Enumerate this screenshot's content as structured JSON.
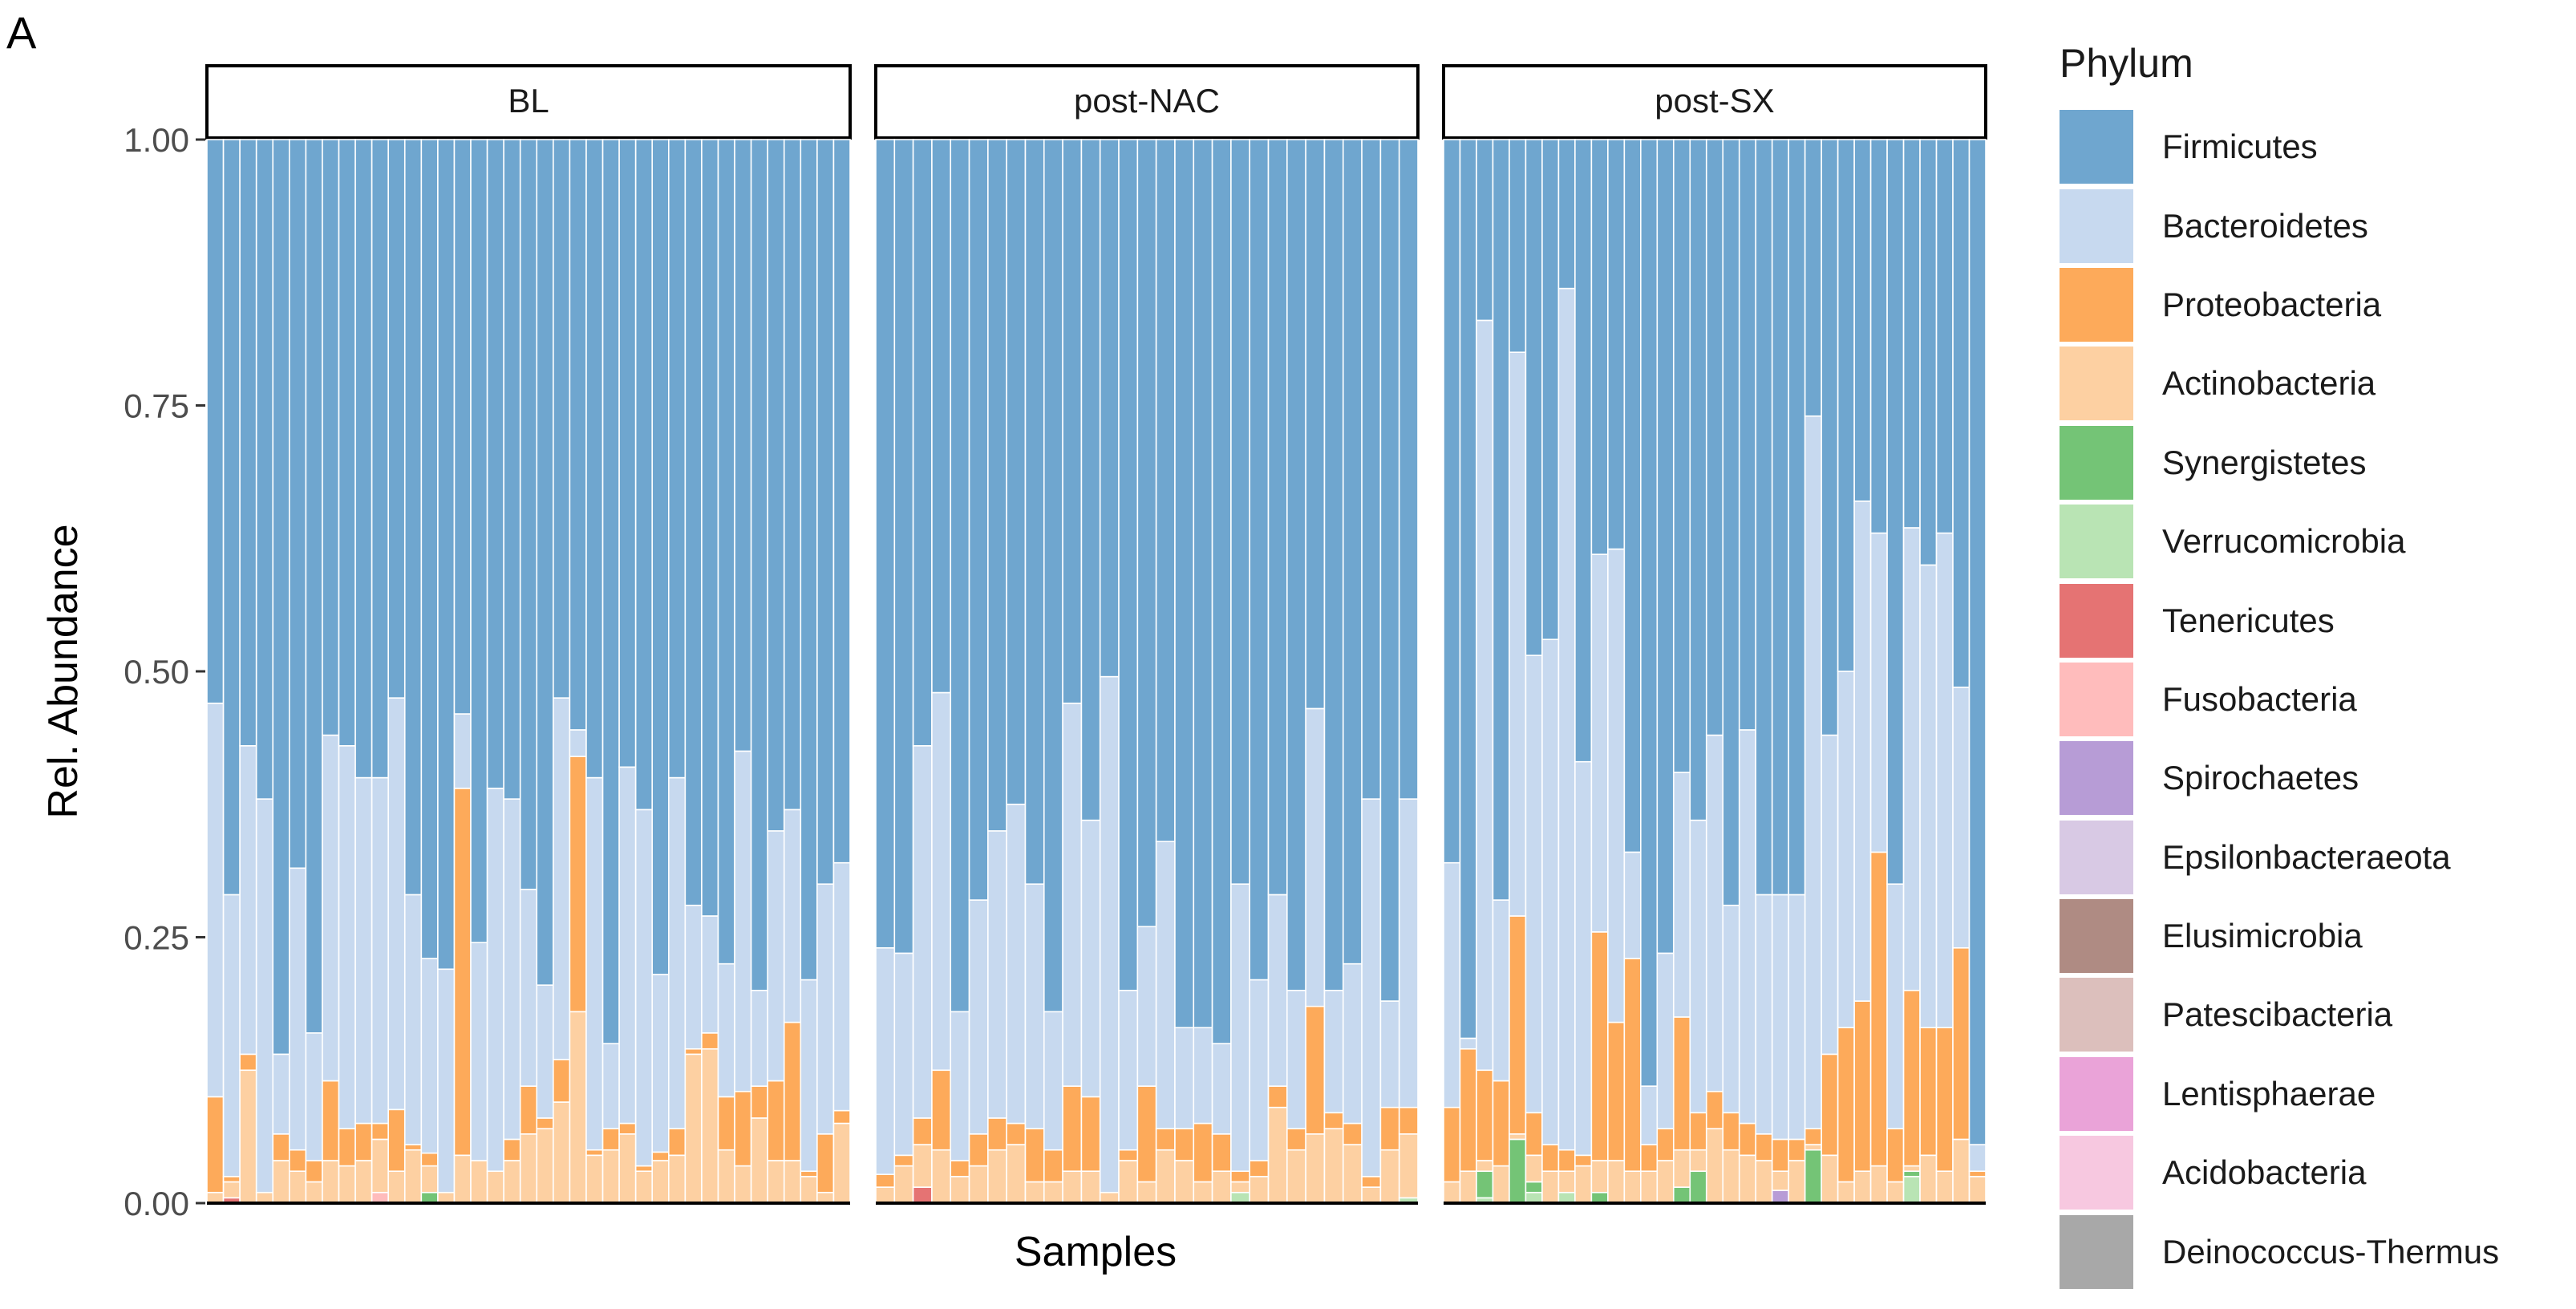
{
  "panel_letter": "A",
  "chart_data": {
    "type": "bar",
    "stacked": true,
    "normalized": true,
    "xlabel": "Samples",
    "ylabel": "Rel. Abundance",
    "ylim": [
      0,
      1
    ],
    "yticks": [
      "0.00",
      "0.25",
      "0.50",
      "0.75",
      "1.00"
    ],
    "legend_title": "Phylum",
    "legend_position": "right",
    "phyla": [
      {
        "name": "Firmicutes",
        "color": "#6fa6cf"
      },
      {
        "name": "Bacteroidetes",
        "color": "#c7d9ef"
      },
      {
        "name": "Proteobacteria",
        "color": "#fdaa5a"
      },
      {
        "name": "Actinobacteria",
        "color": "#fdd0a2"
      },
      {
        "name": "Synergistetes",
        "color": "#74c476"
      },
      {
        "name": "Verrucomicrobia",
        "color": "#b9e4b4"
      },
      {
        "name": "Tenericutes",
        "color": "#e57373"
      },
      {
        "name": "Fusobacteria",
        "color": "#ffbcbc"
      },
      {
        "name": "Spirochaetes",
        "color": "#b79cd6"
      },
      {
        "name": "Epsilonbacteraeota",
        "color": "#d8c9e4"
      },
      {
        "name": "Elusimicrobia",
        "color": "#af8b83"
      },
      {
        "name": "Patescibacteria",
        "color": "#dcbfbc"
      },
      {
        "name": "Lentisphaerae",
        "color": "#eaa3d8"
      },
      {
        "name": "Acidobacteria",
        "color": "#f7c8e0"
      },
      {
        "name": "Deinococcus-Thermus",
        "color": "#a8a8a8"
      }
    ],
    "facets": [
      {
        "label": "BL",
        "samples": [
          {
            "Actinobacteria": 0.01,
            "Proteobacteria": 0.09,
            "Bacteroidetes": 0.37
          },
          {
            "Tenericutes": 0.005,
            "Actinobacteria": 0.015,
            "Proteobacteria": 0.005,
            "Bacteroidetes": 0.265
          },
          {
            "Actinobacteria": 0.125,
            "Proteobacteria": 0.015,
            "Bacteroidetes": 0.29
          },
          {
            "Actinobacteria": 0.01,
            "Bacteroidetes": 0.37
          },
          {
            "Actinobacteria": 0.04,
            "Proteobacteria": 0.025,
            "Bacteroidetes": 0.075
          },
          {
            "Actinobacteria": 0.03,
            "Proteobacteria": 0.02,
            "Bacteroidetes": 0.265
          },
          {
            "Actinobacteria": 0.02,
            "Proteobacteria": 0.02,
            "Bacteroidetes": 0.12
          },
          {
            "Actinobacteria": 0.04,
            "Proteobacteria": 0.075,
            "Bacteroidetes": 0.325
          },
          {
            "Actinobacteria": 0.035,
            "Proteobacteria": 0.035,
            "Bacteroidetes": 0.36
          },
          {
            "Actinobacteria": 0.04,
            "Proteobacteria": 0.035,
            "Bacteroidetes": 0.325
          },
          {
            "Fusobacteria": 0.01,
            "Actinobacteria": 0.05,
            "Proteobacteria": 0.015,
            "Bacteroidetes": 0.325
          },
          {
            "Actinobacteria": 0.03,
            "Proteobacteria": 0.058,
            "Bacteroidetes": 0.387
          },
          {
            "Actinobacteria": 0.05,
            "Proteobacteria": 0.005,
            "Bacteroidetes": 0.235
          },
          {
            "Synergistetes": 0.01,
            "Actinobacteria": 0.025,
            "Proteobacteria": 0.012,
            "Bacteroidetes": 0.183
          },
          {
            "Actinobacteria": 0.01,
            "Bacteroidetes": 0.21
          },
          {
            "Actinobacteria": 0.045,
            "Proteobacteria": 0.345,
            "Bacteroidetes": 0.07
          },
          {
            "Actinobacteria": 0.04,
            "Bacteroidetes": 0.205
          },
          {
            "Actinobacteria": 0.03,
            "Bacteroidetes": 0.36
          },
          {
            "Actinobacteria": 0.04,
            "Proteobacteria": 0.02,
            "Bacteroidetes": 0.32
          },
          {
            "Actinobacteria": 0.065,
            "Proteobacteria": 0.045,
            "Bacteroidetes": 0.185
          },
          {
            "Actinobacteria": 0.07,
            "Proteobacteria": 0.01,
            "Bacteroidetes": 0.125
          },
          {
            "Actinobacteria": 0.095,
            "Proteobacteria": 0.04,
            "Bacteroidetes": 0.34
          },
          {
            "Actinobacteria": 0.18,
            "Proteobacteria": 0.24,
            "Bacteroidetes": 0.025
          },
          {
            "Actinobacteria": 0.045,
            "Proteobacteria": 0.005,
            "Bacteroidetes": 0.35
          },
          {
            "Actinobacteria": 0.05,
            "Proteobacteria": 0.02,
            "Bacteroidetes": 0.08
          },
          {
            "Actinobacteria": 0.065,
            "Proteobacteria": 0.01,
            "Bacteroidetes": 0.335
          },
          {
            "Actinobacteria": 0.03,
            "Proteobacteria": 0.005,
            "Bacteroidetes": 0.335
          },
          {
            "Actinobacteria": 0.04,
            "Proteobacteria": 0.008,
            "Bacteroidetes": 0.167
          },
          {
            "Actinobacteria": 0.045,
            "Proteobacteria": 0.025,
            "Bacteroidetes": 0.33
          },
          {
            "Actinobacteria": 0.14,
            "Proteobacteria": 0.005,
            "Bacteroidetes": 0.135
          },
          {
            "Actinobacteria": 0.145,
            "Proteobacteria": 0.015,
            "Bacteroidetes": 0.11
          },
          {
            "Actinobacteria": 0.05,
            "Proteobacteria": 0.05,
            "Bacteroidetes": 0.125
          },
          {
            "Actinobacteria": 0.035,
            "Proteobacteria": 0.07,
            "Bacteroidetes": 0.32
          },
          {
            "Actinobacteria": 0.08,
            "Proteobacteria": 0.03,
            "Bacteroidetes": 0.09
          },
          {
            "Actinobacteria": 0.04,
            "Proteobacteria": 0.075,
            "Bacteroidetes": 0.235
          },
          {
            "Actinobacteria": 0.04,
            "Proteobacteria": 0.13,
            "Bacteroidetes": 0.2
          },
          {
            "Actinobacteria": 0.025,
            "Proteobacteria": 0.005,
            "Bacteroidetes": 0.18
          },
          {
            "Actinobacteria": 0.01,
            "Proteobacteria": 0.055,
            "Bacteroidetes": 0.235
          },
          {
            "Actinobacteria": 0.075,
            "Proteobacteria": 0.012,
            "Bacteroidetes": 0.233
          }
        ]
      },
      {
        "label": "post-NAC",
        "samples": [
          {
            "Actinobacteria": 0.015,
            "Proteobacteria": 0.012,
            "Bacteroidetes": 0.213
          },
          {
            "Actinobacteria": 0.035,
            "Proteobacteria": 0.01,
            "Bacteroidetes": 0.19
          },
          {
            "Tenericutes": 0.015,
            "Actinobacteria": 0.04,
            "Proteobacteria": 0.025,
            "Bacteroidetes": 0.35
          },
          {
            "Actinobacteria": 0.05,
            "Proteobacteria": 0.075,
            "Bacteroidetes": 0.355
          },
          {
            "Actinobacteria": 0.025,
            "Proteobacteria": 0.015,
            "Bacteroidetes": 0.14
          },
          {
            "Actinobacteria": 0.035,
            "Proteobacteria": 0.03,
            "Bacteroidetes": 0.22
          },
          {
            "Actinobacteria": 0.05,
            "Proteobacteria": 0.03,
            "Bacteroidetes": 0.27
          },
          {
            "Actinobacteria": 0.055,
            "Proteobacteria": 0.02,
            "Bacteroidetes": 0.3
          },
          {
            "Actinobacteria": 0.02,
            "Proteobacteria": 0.05,
            "Bacteroidetes": 0.23
          },
          {
            "Actinobacteria": 0.02,
            "Proteobacteria": 0.03,
            "Bacteroidetes": 0.13
          },
          {
            "Actinobacteria": 0.03,
            "Proteobacteria": 0.08,
            "Bacteroidetes": 0.36
          },
          {
            "Actinobacteria": 0.03,
            "Proteobacteria": 0.07,
            "Bacteroidetes": 0.26
          },
          {
            "Actinobacteria": 0.01,
            "Bacteroidetes": 0.485
          },
          {
            "Actinobacteria": 0.04,
            "Proteobacteria": 0.01,
            "Bacteroidetes": 0.15
          },
          {
            "Actinobacteria": 0.02,
            "Proteobacteria": 0.09,
            "Bacteroidetes": 0.15
          },
          {
            "Actinobacteria": 0.05,
            "Proteobacteria": 0.02,
            "Bacteroidetes": 0.27
          },
          {
            "Actinobacteria": 0.04,
            "Proteobacteria": 0.03,
            "Bacteroidetes": 0.095
          },
          {
            "Actinobacteria": 0.02,
            "Proteobacteria": 0.055,
            "Bacteroidetes": 0.09
          },
          {
            "Actinobacteria": 0.03,
            "Proteobacteria": 0.035,
            "Bacteroidetes": 0.085
          },
          {
            "Verrucomicrobia": 0.01,
            "Actinobacteria": 0.01,
            "Proteobacteria": 0.01,
            "Bacteroidetes": 0.27
          },
          {
            "Actinobacteria": 0.025,
            "Proteobacteria": 0.015,
            "Bacteroidetes": 0.17
          },
          {
            "Actinobacteria": 0.09,
            "Proteobacteria": 0.02,
            "Bacteroidetes": 0.18
          },
          {
            "Actinobacteria": 0.05,
            "Proteobacteria": 0.02,
            "Bacteroidetes": 0.13
          },
          {
            "Actinobacteria": 0.065,
            "Proteobacteria": 0.12,
            "Bacteroidetes": 0.28
          },
          {
            "Actinobacteria": 0.07,
            "Proteobacteria": 0.015,
            "Bacteroidetes": 0.115
          },
          {
            "Actinobacteria": 0.055,
            "Proteobacteria": 0.02,
            "Bacteroidetes": 0.15
          },
          {
            "Actinobacteria": 0.015,
            "Proteobacteria": 0.01,
            "Bacteroidetes": 0.355
          },
          {
            "Actinobacteria": 0.05,
            "Proteobacteria": 0.04,
            "Bacteroidetes": 0.1
          },
          {
            "Verrucomicrobia": 0.005,
            "Actinobacteria": 0.06,
            "Proteobacteria": 0.025,
            "Bacteroidetes": 0.29
          }
        ]
      },
      {
        "label": "post-SX",
        "samples": [
          {
            "Actinobacteria": 0.02,
            "Proteobacteria": 0.07,
            "Bacteroidetes": 0.23
          },
          {
            "Actinobacteria": 0.03,
            "Proteobacteria": 0.115,
            "Bacteroidetes": 0.01
          },
          {
            "Synergistetes": 0.025,
            "Verrucomicrobia": 0.005,
            "Actinobacteria": 0.01,
            "Proteobacteria": 0.085,
            "Bacteroidetes": 0.705
          },
          {
            "Actinobacteria": 0.035,
            "Proteobacteria": 0.08,
            "Bacteroidetes": 0.17
          },
          {
            "Synergistetes": 0.06,
            "Actinobacteria": 0.005,
            "Proteobacteria": 0.205,
            "Bacteroidetes": 0.53
          },
          {
            "Synergistetes": 0.01,
            "Verrucomicrobia": 0.01,
            "Actinobacteria": 0.025,
            "Proteobacteria": 0.04,
            "Bacteroidetes": 0.43
          },
          {
            "Actinobacteria": 0.03,
            "Proteobacteria": 0.025,
            "Bacteroidetes": 0.475
          },
          {
            "Verrucomicrobia": 0.01,
            "Actinobacteria": 0.02,
            "Proteobacteria": 0.02,
            "Bacteroidetes": 0.81
          },
          {
            "Actinobacteria": 0.035,
            "Proteobacteria": 0.01,
            "Bacteroidetes": 0.37
          },
          {
            "Synergistetes": 0.01,
            "Actinobacteria": 0.03,
            "Proteobacteria": 0.215,
            "Bacteroidetes": 0.355
          },
          {
            "Actinobacteria": 0.04,
            "Proteobacteria": 0.13,
            "Bacteroidetes": 0.445
          },
          {
            "Actinobacteria": 0.03,
            "Proteobacteria": 0.2,
            "Bacteroidetes": 0.1
          },
          {
            "Actinobacteria": 0.03,
            "Proteobacteria": 0.025,
            "Bacteroidetes": 0.055
          },
          {
            "Actinobacteria": 0.04,
            "Proteobacteria": 0.03,
            "Bacteroidetes": 0.165
          },
          {
            "Synergistetes": 0.015,
            "Actinobacteria": 0.035,
            "Proteobacteria": 0.125,
            "Bacteroidetes": 0.23
          },
          {
            "Synergistetes": 0.03,
            "Actinobacteria": 0.02,
            "Proteobacteria": 0.035,
            "Bacteroidetes": 0.275
          },
          {
            "Actinobacteria": 0.07,
            "Proteobacteria": 0.035,
            "Bacteroidetes": 0.335
          },
          {
            "Actinobacteria": 0.05,
            "Proteobacteria": 0.035,
            "Bacteroidetes": 0.195
          },
          {
            "Actinobacteria": 0.045,
            "Proteobacteria": 0.03,
            "Bacteroidetes": 0.37
          },
          {
            "Actinobacteria": 0.04,
            "Proteobacteria": 0.025,
            "Bacteroidetes": 0.225
          },
          {
            "Spirochaetes": 0.012,
            "Actinobacteria": 0.018,
            "Proteobacteria": 0.03,
            "Bacteroidetes": 0.23
          },
          {
            "Actinobacteria": 0.04,
            "Proteobacteria": 0.02,
            "Bacteroidetes": 0.23
          },
          {
            "Synergistetes": 0.05,
            "Actinobacteria": 0.005,
            "Proteobacteria": 0.015,
            "Bacteroidetes": 0.67
          },
          {
            "Actinobacteria": 0.045,
            "Proteobacteria": 0.095,
            "Bacteroidetes": 0.3
          },
          {
            "Actinobacteria": 0.02,
            "Proteobacteria": 0.145,
            "Bacteroidetes": 0.335
          },
          {
            "Actinobacteria": 0.03,
            "Proteobacteria": 0.16,
            "Bacteroidetes": 0.47
          },
          {
            "Actinobacteria": 0.035,
            "Proteobacteria": 0.295,
            "Bacteroidetes": 0.3
          },
          {
            "Actinobacteria": 0.02,
            "Proteobacteria": 0.05,
            "Bacteroidetes": 0.23
          },
          {
            "Verrucomicrobia": 0.025,
            "Synergistetes": 0.005,
            "Actinobacteria": 0.005,
            "Proteobacteria": 0.165,
            "Bacteroidetes": 0.435
          },
          {
            "Actinobacteria": 0.045,
            "Proteobacteria": 0.12,
            "Bacteroidetes": 0.435
          },
          {
            "Actinobacteria": 0.03,
            "Proteobacteria": 0.135,
            "Bacteroidetes": 0.465
          },
          {
            "Actinobacteria": 0.06,
            "Proteobacteria": 0.18,
            "Bacteroidetes": 0.245
          },
          {
            "Actinobacteria": 0.025,
            "Proteobacteria": 0.005,
            "Bacteroidetes": 0.025
          }
        ]
      }
    ]
  }
}
